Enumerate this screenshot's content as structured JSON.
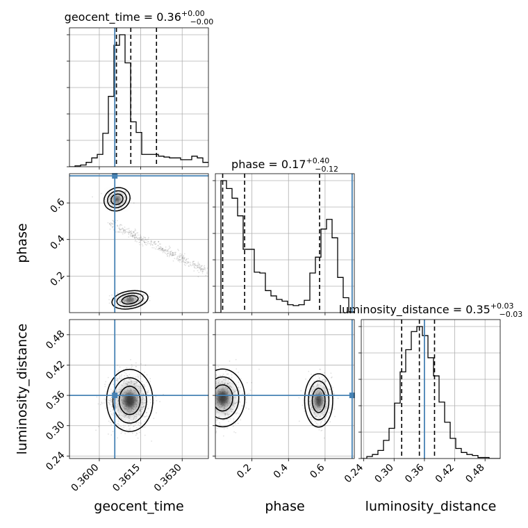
{
  "chart_data": {
    "type": "corner",
    "parameters": [
      "geocent_time",
      "phase",
      "luminosity_distance"
    ],
    "axis_labels": [
      "geocent_time",
      "phase",
      "luminosity_distance"
    ],
    "ranges": [
      [
        0.35892,
        0.36395
      ],
      [
        0.0,
        0.76
      ],
      [
        0.235,
        0.51
      ]
    ],
    "ticks": {
      "geocent_time": {
        "values": [
          0.36,
          0.3615,
          0.363
        ],
        "labels": [
          "0.3600",
          "0.3615",
          "0.3630"
        ]
      },
      "phase": {
        "values": [
          0.2,
          0.4,
          0.6
        ],
        "labels": [
          "0.2",
          "0.4",
          "0.6"
        ]
      },
      "luminosity_distance": {
        "values": [
          0.24,
          0.3,
          0.36,
          0.42,
          0.48
        ],
        "labels": [
          "0.24",
          "0.30",
          "0.36",
          "0.42",
          "0.48"
        ]
      }
    },
    "truths": [
      0.36056,
      0.748,
      0.36
    ],
    "truth_color": "#4682b4",
    "titles": [
      {
        "name": "geocent_time",
        "value": "0.36",
        "plus": "+0.00",
        "minus": "−0.00"
      },
      {
        "name": "phase",
        "value": "0.17",
        "plus": "+0.40",
        "minus": "−0.12"
      },
      {
        "name": "luminosity_distance",
        "value": "0.35",
        "plus": "+0.03",
        "minus": "−0.03"
      }
    ],
    "quantiles": [
      [
        0.36062,
        0.36114,
        0.36207
      ],
      [
        0.04,
        0.16,
        0.57
      ],
      [
        0.315,
        0.35,
        0.38
      ]
    ],
    "histograms": [
      {
        "edges_range": [
          0.35892,
          0.36395
        ],
        "bins": 25,
        "counts": [
          0,
          1,
          2,
          5,
          10,
          14,
          38,
          80,
          138,
          150,
          118,
          51,
          39,
          14,
          14,
          14,
          12,
          11,
          10,
          10,
          8,
          8,
          12,
          10,
          5
        ]
      },
      {
        "edges_range": [
          0.0,
          0.76
        ],
        "bins": 25,
        "counts": [
          0,
          150,
          141,
          130,
          110,
          72,
          72,
          46,
          45,
          25,
          19,
          15,
          13,
          9,
          8,
          9,
          14,
          45,
          63,
          95,
          106,
          85,
          40,
          17,
          1
        ]
      },
      {
        "edges_range": [
          0.235,
          0.51
        ],
        "bins": 25,
        "counts": [
          0,
          2,
          4,
          8,
          18,
          30,
          55,
          86,
          108,
          126,
          131,
          122,
          100,
          82,
          56,
          36,
          20,
          10,
          6,
          4,
          3,
          1,
          1,
          0,
          0
        ]
      }
    ],
    "pair_panels": [
      {
        "x": "geocent_time",
        "y": "phase",
        "structure": "upper cluster near (0.3606, 0.62), diagonal streak to lower-right, lower cluster near (0.3611, 0.07)"
      },
      {
        "x": "geocent_time",
        "y": "luminosity_distance",
        "structure": "single mode near (0.3611, 0.35)"
      },
      {
        "x": "phase",
        "y": "luminosity_distance",
        "structure": "two modes near phase 0.04 and 0.57 at luminosity_distance ~0.35"
      }
    ],
    "grid": true,
    "legend": "none"
  }
}
